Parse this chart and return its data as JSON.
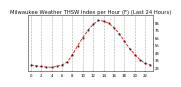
{
  "title": "Milwaukee Weather THSW Index per Hour (F) (Last 24 Hours)",
  "hours": [
    0,
    1,
    2,
    3,
    4,
    5,
    6,
    7,
    8,
    9,
    10,
    11,
    12,
    13,
    14,
    15,
    16,
    17,
    18,
    19,
    20,
    21,
    22,
    23
  ],
  "values": [
    28,
    27,
    26,
    25,
    25,
    26,
    28,
    32,
    42,
    54,
    65,
    75,
    83,
    88,
    87,
    84,
    78,
    70,
    60,
    50,
    42,
    35,
    30,
    28
  ],
  "line_color": "#ff0000",
  "marker_color": "#222222",
  "bg_color": "#ffffff",
  "plot_bg_color": "#ffffff",
  "grid_color": "#aaaaaa",
  "ylim": [
    20,
    95
  ],
  "yticks": [
    25,
    35,
    45,
    55,
    65,
    75,
    85
  ],
  "ytick_labels": [
    "25",
    "35",
    "45",
    "55",
    "65",
    "75",
    "85"
  ],
  "xtick_hours": [
    0,
    2,
    4,
    6,
    8,
    10,
    12,
    14,
    16,
    18,
    20,
    22
  ],
  "xtick_labels": [
    "0",
    "2",
    "4",
    "6",
    "8",
    "10",
    "12",
    "14",
    "16",
    "18",
    "20",
    "22"
  ],
  "title_fontsize": 3.8,
  "tick_fontsize": 2.8,
  "yaxis_side": "right"
}
